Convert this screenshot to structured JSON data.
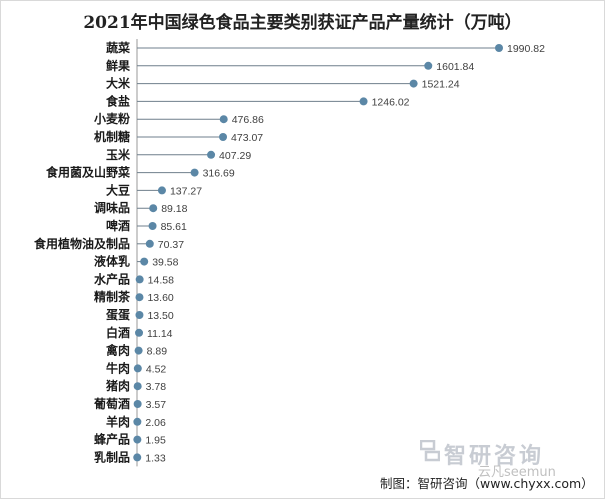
{
  "chart_data": {
    "type": "lollipop",
    "title": "2021年中国绿色食品主要类别获证产品产量统计（万吨）",
    "categories": [
      "蔬菜",
      "鲜果",
      "大米",
      "食盐",
      "小麦粉",
      "机制糖",
      "玉米",
      "食用菌及山野菜",
      "大豆",
      "调味品",
      "啤酒",
      "食用植物油及制品",
      "液体乳",
      "水产品",
      "精制茶",
      "蛋蛋",
      "白酒",
      "禽肉",
      "牛肉",
      "猪肉",
      "葡萄酒",
      "羊肉",
      "蜂产品",
      "乳制品"
    ],
    "values": [
      1990.82,
      1601.84,
      1521.24,
      1246.02,
      476.86,
      473.07,
      407.29,
      316.69,
      137.27,
      89.18,
      85.61,
      70.37,
      39.58,
      14.58,
      13.6,
      13.5,
      11.14,
      8.89,
      4.52,
      3.78,
      3.57,
      2.06,
      1.95,
      1.33
    ],
    "value_labels": [
      "1990.82",
      "1601.84",
      "1521.24",
      "1246.02",
      "476.86",
      "473.07",
      "407.29",
      "316.69",
      "137.27",
      "89.18",
      "85.61",
      "70.37",
      "39.58",
      "14.58",
      "13.60",
      "13.50",
      "11.14",
      "8.89",
      "4.52",
      "3.78",
      "3.57",
      "2.06",
      "1.95",
      "1.33"
    ],
    "series_color": "#5b87a6",
    "line_color": "#6f7f8c",
    "axis": "left",
    "grid": false,
    "legend": "none"
  },
  "watermark": {
    "brand": "智研咨询",
    "sub": "云凡seemun"
  },
  "source": "制图：智研咨询（www.chyxx.com）"
}
